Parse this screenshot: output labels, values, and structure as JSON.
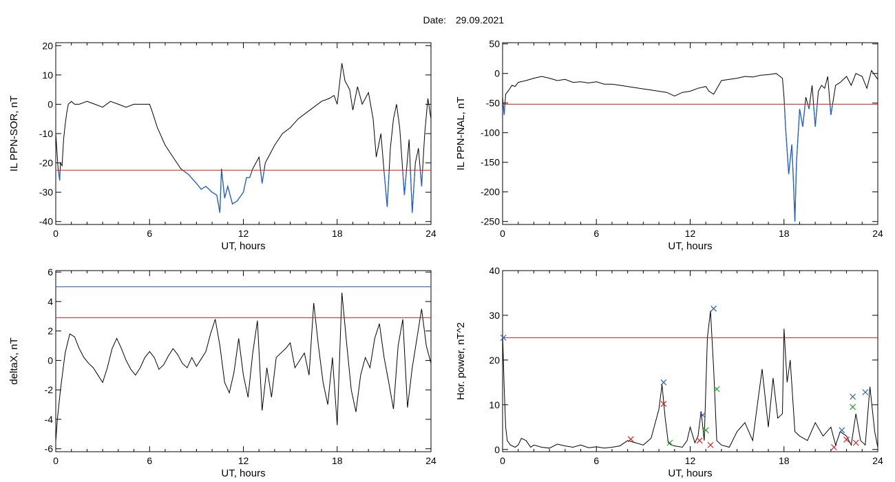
{
  "header": {
    "date_label": "Date:",
    "date_value": "29.09.2021"
  },
  "colors": {
    "trace": "#000000",
    "threshold": "#e31a1c",
    "below": "#1f5fd6",
    "marker_blue": "#1f5fd6",
    "marker_red": "#e31a1c",
    "marker_green": "#18a81e"
  },
  "chart_data": [
    {
      "id": "il-sor",
      "type": "line",
      "ylabel": "IL PPN-SOR, nT",
      "xlabel": "UT, hours",
      "xlim": [
        0,
        24
      ],
      "ylim": [
        -41,
        21
      ],
      "xticks": [
        0,
        6,
        12,
        18,
        24
      ],
      "yticks": [
        -40,
        -30,
        -20,
        -10,
        0,
        10,
        20
      ],
      "thresholds": [
        {
          "value": -22.5,
          "color": "#e31a1c"
        }
      ],
      "highlight_below": -22.5,
      "series": [
        {
          "x": [
            0,
            0.15,
            0.25,
            0.3,
            0.4,
            0.5,
            0.6,
            0.7,
            0.8,
            1.0,
            1.2,
            1.5,
            2,
            2.5,
            3,
            3.5,
            4,
            4.5,
            5,
            5.5,
            6,
            6.2,
            6.5,
            7,
            7.5,
            8,
            8.5,
            9,
            9.3,
            9.6,
            10,
            10.3,
            10.5,
            10.6,
            10.8,
            11,
            11.3,
            11.6,
            12,
            12.2,
            12.4,
            12.6,
            12.8,
            13,
            13.2,
            13.4,
            13.6,
            14,
            14.5,
            15,
            15.5,
            16,
            16.5,
            17,
            17.5,
            17.8,
            18,
            18.3,
            18.5,
            18.8,
            19,
            19.3,
            19.6,
            20,
            20.3,
            20.5,
            20.8,
            21.0,
            21.2,
            21.4,
            21.6,
            21.8,
            22,
            22.3,
            22.6,
            22.8,
            23,
            23.2,
            23.4,
            23.6,
            23.8,
            24
          ],
          "y": [
            -10,
            -22,
            -26,
            -20,
            -21,
            -12,
            -7,
            -3,
            0,
            1,
            0,
            0,
            1,
            0,
            -1,
            1,
            0,
            -1,
            0,
            0,
            0,
            -3,
            -8,
            -14,
            -18,
            -22,
            -24,
            -27,
            -29,
            -28,
            -30,
            -31,
            -37,
            -22,
            -32,
            -28,
            -34,
            -33,
            -30,
            -25,
            -25,
            -22,
            -20,
            -18,
            -27,
            -20,
            -18,
            -14,
            -10,
            -8,
            -5,
            -3,
            -1,
            1,
            2,
            3,
            0,
            14,
            8,
            5,
            -2,
            6,
            0,
            4,
            -5,
            -18,
            -10,
            -23,
            -35,
            -15,
            -5,
            0,
            -8,
            -31,
            -12,
            -37,
            -20,
            -15,
            -28,
            -10,
            2,
            -5
          ]
        }
      ]
    },
    {
      "id": "il-nal",
      "type": "line",
      "ylabel": "IL PPN-NAL, nT",
      "xlabel": "UT, hours",
      "xlim": [
        0,
        24
      ],
      "ylim": [
        -255,
        52
      ],
      "xticks": [
        0,
        6,
        12,
        18,
        24
      ],
      "yticks": [
        -250,
        -200,
        -150,
        -100,
        -50,
        0,
        50
      ],
      "thresholds": [
        {
          "value": -52,
          "color": "#e31a1c"
        }
      ],
      "highlight_below": -52,
      "series": [
        {
          "x": [
            0,
            0.1,
            0.2,
            0.4,
            0.6,
            0.8,
            1,
            1.5,
            2,
            2.5,
            3,
            3.5,
            4,
            4.5,
            5,
            5.5,
            6,
            6.5,
            7,
            7.5,
            8,
            8.5,
            9,
            9.5,
            10,
            10.5,
            11,
            11.5,
            12,
            12.5,
            13,
            13.2,
            13.5,
            14,
            14.5,
            15,
            15.5,
            16,
            16.5,
            17,
            17.5,
            17.9,
            18,
            18.1,
            18.3,
            18.5,
            18.6,
            18.7,
            18.8,
            19,
            19.2,
            19.4,
            19.6,
            19.8,
            20,
            20.2,
            20.4,
            20.6,
            20.8,
            21,
            21.3,
            21.6,
            22,
            22.3,
            22.6,
            23,
            23.3,
            23.6,
            24
          ],
          "y": [
            -40,
            -70,
            -35,
            -28,
            -20,
            -22,
            -15,
            -12,
            -8,
            -5,
            -8,
            -12,
            -10,
            -15,
            -14,
            -16,
            -14,
            -18,
            -18,
            -20,
            -22,
            -24,
            -26,
            -28,
            -30,
            -32,
            -38,
            -32,
            -30,
            -25,
            -22,
            -30,
            -35,
            -12,
            -10,
            -8,
            -5,
            -6,
            -3,
            -2,
            0,
            -8,
            -40,
            -90,
            -170,
            -120,
            -180,
            -250,
            -150,
            -60,
            -90,
            -40,
            -60,
            -20,
            -90,
            -30,
            -20,
            -25,
            -5,
            -70,
            -20,
            -15,
            -5,
            -20,
            0,
            -5,
            -25,
            5,
            -10
          ]
        }
      ]
    },
    {
      "id": "deltax",
      "type": "line",
      "ylabel": "deltaX, nT",
      "xlabel": "UT, hours",
      "xlim": [
        0,
        24
      ],
      "ylim": [
        -6.2,
        6.1
      ],
      "xticks": [
        0,
        6,
        12,
        18,
        24
      ],
      "yticks": [
        -6,
        -4,
        -2,
        0,
        2,
        4,
        6
      ],
      "thresholds": [
        {
          "value": 5.0,
          "color": "#1f5fd6"
        },
        {
          "value": 2.9,
          "color": "#e31a1c"
        }
      ],
      "series": [
        {
          "x": [
            0,
            0.1,
            0.3,
            0.6,
            0.9,
            1.2,
            1.5,
            1.8,
            2.1,
            2.4,
            2.7,
            3.0,
            3.3,
            3.6,
            3.9,
            4.2,
            4.5,
            4.8,
            5.1,
            5.4,
            5.7,
            6.0,
            6.3,
            6.6,
            6.9,
            7.2,
            7.5,
            7.8,
            8.1,
            8.4,
            8.7,
            9.0,
            9.3,
            9.6,
            9.9,
            10.2,
            10.5,
            10.8,
            11.1,
            11.4,
            11.7,
            12.0,
            12.3,
            12.6,
            12.9,
            13.2,
            13.5,
            13.8,
            14.1,
            14.4,
            14.7,
            15.0,
            15.3,
            15.6,
            15.9,
            16.2,
            16.5,
            16.8,
            17.1,
            17.4,
            17.7,
            18.0,
            18.3,
            18.6,
            18.9,
            19.2,
            19.5,
            19.8,
            20.1,
            20.4,
            20.7,
            21.0,
            21.3,
            21.6,
            21.9,
            22.2,
            22.5,
            22.8,
            23.1,
            23.4,
            23.7,
            24
          ],
          "y": [
            -5.5,
            -4,
            -2,
            0.5,
            1.8,
            1.6,
            0.8,
            0.2,
            -0.2,
            -0.5,
            -1,
            -1.5,
            -0.5,
            0.8,
            1.5,
            0.8,
            0,
            -0.6,
            -1,
            -0.5,
            0.2,
            0.6,
            0.2,
            -0.6,
            -0.3,
            0.3,
            0.8,
            0.4,
            -0.2,
            -0.5,
            0.2,
            -0.4,
            0.1,
            0.6,
            1.8,
            2.8,
            1,
            -1.5,
            -2.2,
            -0.8,
            1.5,
            -1,
            -2.5,
            0.5,
            2.7,
            -3.4,
            -0.5,
            -2.5,
            0.2,
            0.5,
            0.8,
            1.2,
            -0.5,
            0,
            0.5,
            -1,
            3.9,
            1,
            -1.5,
            -3,
            0.2,
            -4.4,
            4.6,
            1.2,
            -2,
            -3.5,
            -1,
            0.2,
            -0.5,
            1.5,
            2.5,
            0.2,
            -1.5,
            -3.3,
            1,
            2.8,
            -3.2,
            -0.5,
            1.5,
            3.5,
            1,
            -0.2
          ]
        }
      ]
    },
    {
      "id": "hor-power",
      "type": "line",
      "ylabel": "Hor. power, nT^2",
      "xlabel": "UT, hours",
      "xlim": [
        0,
        24
      ],
      "ylim": [
        -0.5,
        40
      ],
      "xticks": [
        0,
        6,
        12,
        18,
        24
      ],
      "yticks": [
        0,
        10,
        20,
        30,
        40
      ],
      "thresholds": [
        {
          "value": 25,
          "color": "#e31a1c"
        }
      ],
      "series": [
        {
          "x": [
            0,
            0.1,
            0.2,
            0.3,
            0.5,
            0.8,
            1,
            1.2,
            1.5,
            1.8,
            2,
            2.5,
            3,
            3.5,
            4,
            4.5,
            5,
            5.5,
            6,
            6.5,
            7,
            7.5,
            8,
            8.5,
            9,
            9.5,
            10,
            10.2,
            10.4,
            10.6,
            10.8,
            11,
            11.5,
            11.8,
            12,
            12.3,
            12.5,
            12.7,
            12.9,
            13.1,
            13.3,
            13.5,
            13.7,
            14,
            14.5,
            15,
            15.5,
            16,
            16.3,
            16.6,
            17,
            17.3,
            17.6,
            17.9,
            18,
            18.2,
            18.4,
            18.7,
            19,
            19.5,
            20,
            20.5,
            21,
            21.3,
            21.6,
            22,
            22.3,
            22.6,
            22.9,
            23.2,
            23.5,
            23.8,
            24
          ],
          "y": [
            26,
            14,
            5,
            2,
            1,
            0.5,
            1,
            2.5,
            2,
            0.5,
            1,
            0.5,
            0.3,
            1.2,
            0.8,
            0.5,
            1,
            0.4,
            0.6,
            0.3,
            0.5,
            0.8,
            2,
            1.5,
            1,
            2.5,
            9,
            14.5,
            7,
            1.5,
            1,
            0.8,
            0.5,
            2,
            5,
            1.5,
            3,
            8.5,
            2,
            25,
            31,
            18,
            2,
            1,
            0.5,
            4,
            6,
            2,
            10,
            18,
            5,
            16,
            7,
            8,
            27,
            15,
            20,
            4,
            3,
            2,
            6,
            3,
            5,
            1,
            4,
            3,
            1,
            8,
            2,
            1,
            14,
            4,
            0.5
          ]
        }
      ],
      "markers": [
        {
          "x": 0.05,
          "y": 25,
          "color": "blue"
        },
        {
          "x": 10.3,
          "y": 15,
          "color": "blue"
        },
        {
          "x": 10.3,
          "y": 10.2,
          "color": "red"
        },
        {
          "x": 10.7,
          "y": 1.5,
          "color": "green"
        },
        {
          "x": 8.2,
          "y": 2.3,
          "color": "red"
        },
        {
          "x": 12.6,
          "y": 2,
          "color": "red"
        },
        {
          "x": 12.8,
          "y": 7.7,
          "color": "blue"
        },
        {
          "x": 13.0,
          "y": 4.3,
          "color": "green"
        },
        {
          "x": 13.3,
          "y": 1,
          "color": "red"
        },
        {
          "x": 13.5,
          "y": 31.5,
          "color": "blue"
        },
        {
          "x": 13.7,
          "y": 13.5,
          "color": "green"
        },
        {
          "x": 21.2,
          "y": 0.5,
          "color": "red"
        },
        {
          "x": 21.7,
          "y": 4.3,
          "color": "blue"
        },
        {
          "x": 22.0,
          "y": 2.2,
          "color": "red"
        },
        {
          "x": 22.4,
          "y": 11.8,
          "color": "blue"
        },
        {
          "x": 22.4,
          "y": 9.5,
          "color": "green"
        },
        {
          "x": 22.6,
          "y": 1.5,
          "color": "red"
        },
        {
          "x": 23.2,
          "y": 12.8,
          "color": "blue"
        }
      ]
    }
  ]
}
